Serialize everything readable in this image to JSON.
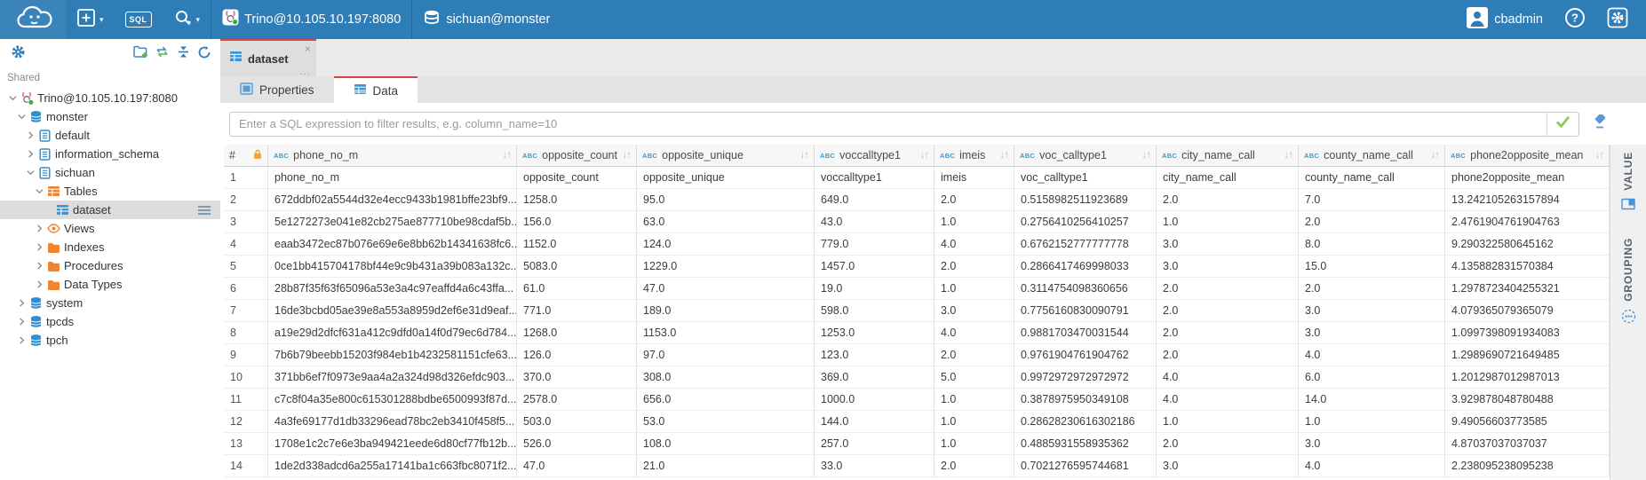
{
  "topbar": {
    "connection_label": "Trino@10.105.10.197:8080",
    "schema_label": "sichuan@monster",
    "user_label": "cbadmin",
    "sql_button_label": "SQL",
    "accent_blue": "#2e7db6"
  },
  "sidebar": {
    "section_label": "Shared",
    "toolbar_icons": [
      "settings-gear-icon",
      "add-folder-icon",
      "sync-arrows-icon",
      "collapse-all-icon",
      "refresh-icon"
    ],
    "tree": [
      {
        "label": "Trino@10.105.10.197:8080",
        "icon": "trino",
        "level": 0,
        "chevron": "down",
        "selected": false,
        "menu": false
      },
      {
        "label": "monster",
        "icon": "db",
        "level": 1,
        "chevron": "down",
        "selected": false,
        "menu": false
      },
      {
        "label": "default",
        "icon": "schema",
        "level": 2,
        "chevron": "right",
        "selected": false,
        "menu": false
      },
      {
        "label": "information_schema",
        "icon": "schema",
        "level": 2,
        "chevron": "right",
        "selected": false,
        "menu": false
      },
      {
        "label": "sichuan",
        "icon": "schema",
        "level": 2,
        "chevron": "down",
        "selected": false,
        "menu": false
      },
      {
        "label": "Tables",
        "icon": "tablesFolder",
        "level": 3,
        "chevron": "down",
        "selected": false,
        "menu": false
      },
      {
        "label": "dataset",
        "icon": "tableBlue",
        "level": 4,
        "chevron": "none",
        "selected": true,
        "menu": true
      },
      {
        "label": "Views",
        "icon": "eye",
        "level": 3,
        "chevron": "right",
        "selected": false,
        "menu": false
      },
      {
        "label": "Indexes",
        "icon": "folder",
        "level": 3,
        "chevron": "right",
        "selected": false,
        "menu": false
      },
      {
        "label": "Procedures",
        "icon": "folder",
        "level": 3,
        "chevron": "right",
        "selected": false,
        "menu": false
      },
      {
        "label": "Data Types",
        "icon": "folder",
        "level": 3,
        "chevron": "right",
        "selected": false,
        "menu": false
      },
      {
        "label": "system",
        "icon": "db",
        "level": 1,
        "chevron": "right",
        "selected": false,
        "menu": false
      },
      {
        "label": "tpcds",
        "icon": "db",
        "level": 1,
        "chevron": "right",
        "selected": false,
        "menu": false
      },
      {
        "label": "tpch",
        "icon": "db",
        "level": 1,
        "chevron": "right",
        "selected": false,
        "menu": false
      }
    ]
  },
  "tabs": {
    "main_tab_label": "dataset",
    "sub_tabs": [
      {
        "label": "Properties",
        "active": false
      },
      {
        "label": "Data",
        "active": true
      }
    ]
  },
  "filter": {
    "placeholder": "Enter a SQL expression to filter results, e.g. column_name=10",
    "value": ""
  },
  "grid": {
    "row_number_header": "#",
    "columns": [
      {
        "label": "phone_no_m",
        "type": "ABC"
      },
      {
        "label": "opposite_count",
        "type": "ABC"
      },
      {
        "label": "opposite_unique",
        "type": "ABC"
      },
      {
        "label": "voccalltype1",
        "type": "ABC"
      },
      {
        "label": "imeis",
        "type": "ABC"
      },
      {
        "label": "voc_calltype1",
        "type": "ABC"
      },
      {
        "label": "city_name_call",
        "type": "ABC"
      },
      {
        "label": "county_name_call",
        "type": "ABC"
      },
      {
        "label": "phone2opposite_mean",
        "type": "ABC"
      }
    ],
    "rows": [
      [
        "phone_no_m",
        "opposite_count",
        "opposite_unique",
        "voccalltype1",
        "imeis",
        "voc_calltype1",
        "city_name_call",
        "county_name_call",
        "phone2opposite_mean"
      ],
      [
        "672ddbf02a5544d32e4ecc9433b1981bffe23bf9...",
        "1258.0",
        "95.0",
        "649.0",
        "2.0",
        "0.5158982511923689",
        "2.0",
        "7.0",
        "13.242105263157894"
      ],
      [
        "5e1272273e041e82cb275ae877710be98cdaf5b...",
        "156.0",
        "63.0",
        "43.0",
        "1.0",
        "0.2756410256410257",
        "1.0",
        "2.0",
        "2.4761904761904763"
      ],
      [
        "eaab3472ec87b076e69e6e8bb62b14341638fc6...",
        "1152.0",
        "124.0",
        "779.0",
        "4.0",
        "0.6762152777777778",
        "3.0",
        "8.0",
        "9.290322580645162"
      ],
      [
        "0ce1bb415704178bf44e9c9b431a39b083a132c...",
        "5083.0",
        "1229.0",
        "1457.0",
        "2.0",
        "0.2866417469998033",
        "3.0",
        "15.0",
        "4.135882831570384"
      ],
      [
        "28b87f35f63f65096a53e3a4c97eaffd4a6c43ffa...",
        "61.0",
        "47.0",
        "19.0",
        "1.0",
        "0.3114754098360656",
        "2.0",
        "2.0",
        "1.2978723404255321"
      ],
      [
        "16de3bcbd05ae39e8a553a8959d2ef6e31d9eaf...",
        "771.0",
        "189.0",
        "598.0",
        "3.0",
        "0.7756160830090791",
        "2.0",
        "3.0",
        "4.079365079365079"
      ],
      [
        "a19e29d2dfcf631a412c9dfd0a14f0d79ec6d784...",
        "1268.0",
        "1153.0",
        "1253.0",
        "4.0",
        "0.9881703470031544",
        "2.0",
        "3.0",
        "1.0997398091934083"
      ],
      [
        "7b6b79beebb15203f984eb1b4232581151cfe63...",
        "126.0",
        "97.0",
        "123.0",
        "2.0",
        "0.9761904761904762",
        "2.0",
        "4.0",
        "1.2989690721649485"
      ],
      [
        "371bb6ef7f0973e9aa4a2a324d98d326efdc903...",
        "370.0",
        "308.0",
        "369.0",
        "5.0",
        "0.9972972972972972",
        "4.0",
        "6.0",
        "1.2012987012987013"
      ],
      [
        "c7c8f04a35e800c615301288bdbe6500993f87d...",
        "2578.0",
        "656.0",
        "1000.0",
        "1.0",
        "0.3878975950349108",
        "4.0",
        "14.0",
        "3.929878048780488"
      ],
      [
        "4a3fe69177d1db33296ead78bc2eb3410f458f5...",
        "503.0",
        "53.0",
        "144.0",
        "1.0",
        "0.28628230616302186",
        "1.0",
        "1.0",
        "9.49056603773585"
      ],
      [
        "1708e1c2c7e6e3ba949421eede6d80cf77fb12b...",
        "526.0",
        "108.0",
        "257.0",
        "1.0",
        "0.4885931558935362",
        "2.0",
        "3.0",
        "4.87037037037037"
      ],
      [
        "1de2d338adcd6a255a17141ba1c663fbc8071f2...",
        "47.0",
        "21.0",
        "33.0",
        "2.0",
        "0.7021276595744681",
        "3.0",
        "4.0",
        "2.238095238095238"
      ]
    ]
  },
  "right_panel": {
    "tabs": [
      {
        "label": "VALUE",
        "icon": "value-panel-icon"
      },
      {
        "label": "GROUPING",
        "icon": "grouping-icon"
      }
    ]
  }
}
